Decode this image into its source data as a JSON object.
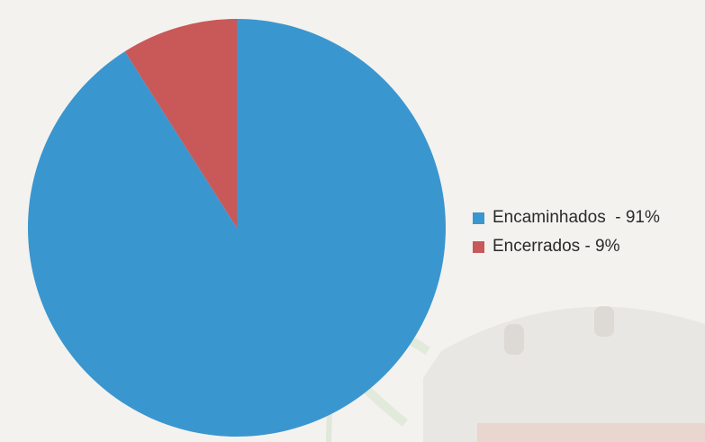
{
  "chart_data": {
    "type": "pie",
    "slices": [
      {
        "label": "Encaminhados",
        "value": 91,
        "color": "#3a96cf"
      },
      {
        "label": "Encerrados",
        "value": 9,
        "color": "#c95858"
      }
    ],
    "legend": {
      "placement": "right",
      "items": [
        {
          "label": "Encaminhados  - 91%",
          "color": "#3a96cf"
        },
        {
          "label": "Encerrados - 9%",
          "color": "#c95858"
        }
      ]
    },
    "start_angle_deg": 0,
    "direction": "clockwise"
  }
}
